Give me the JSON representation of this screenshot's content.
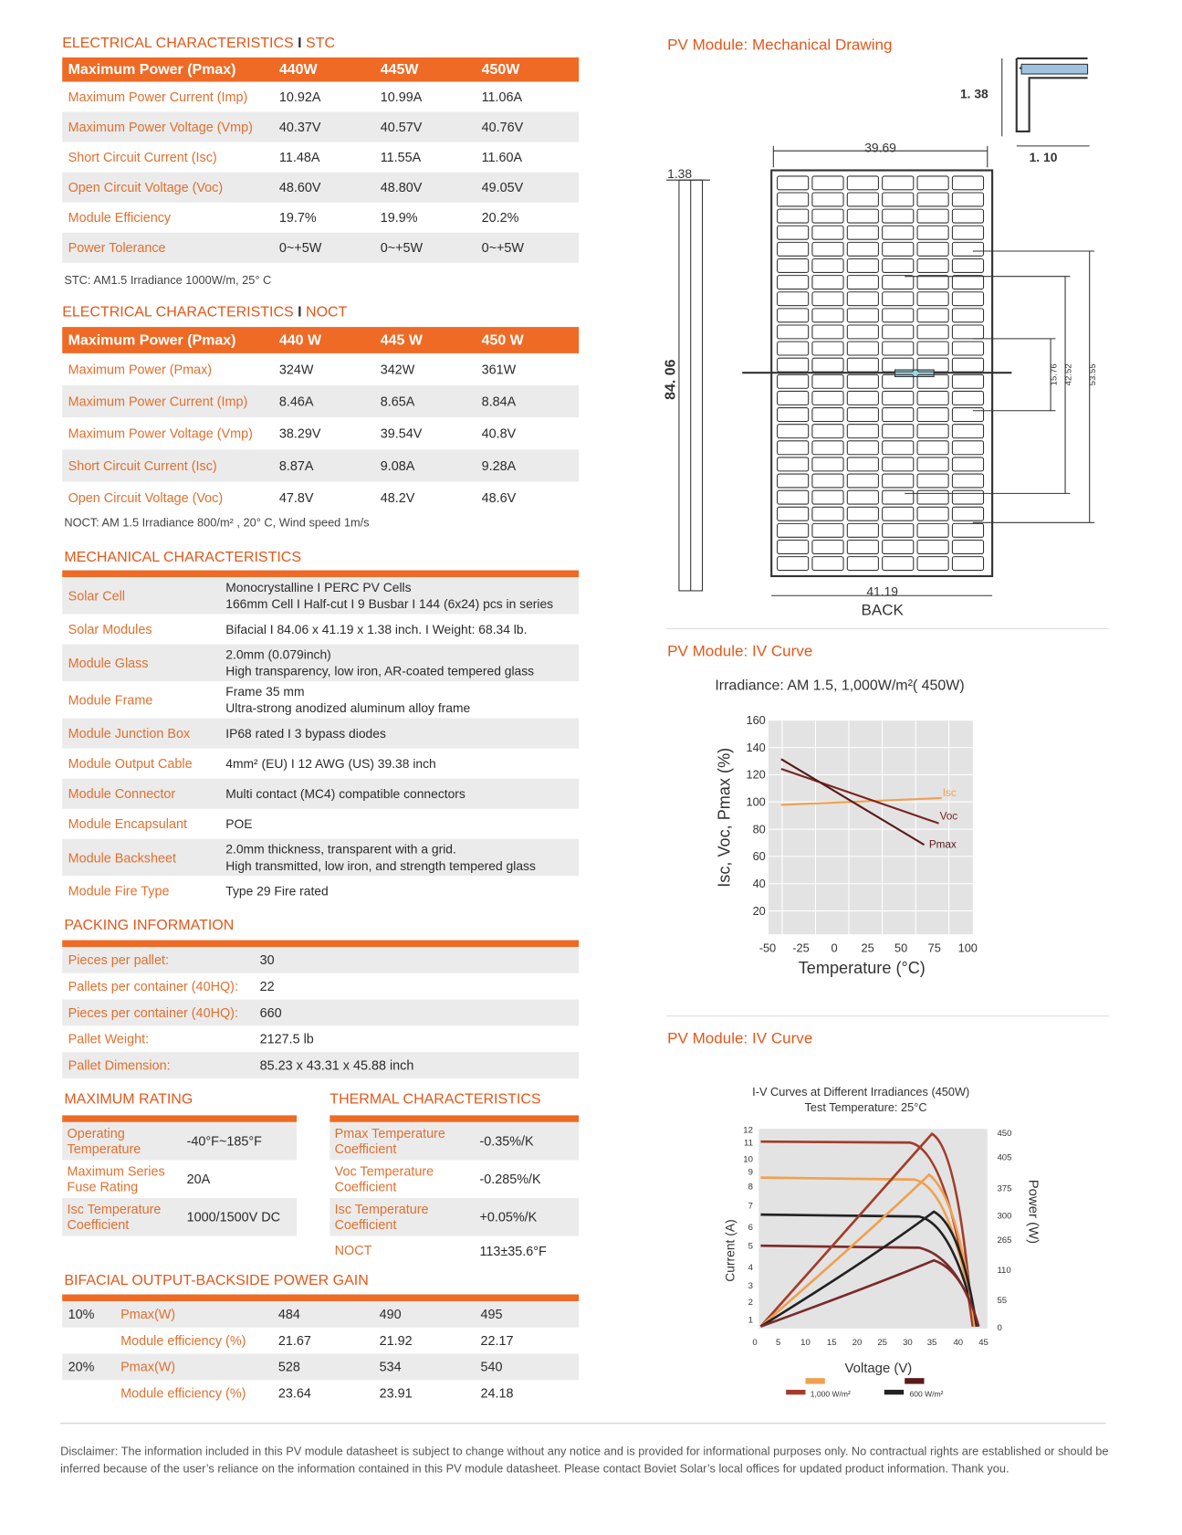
{
  "stc": {
    "title_a": "ELECTRICAL CHARACTERISTICS",
    "sep": "I",
    "title_b": "STC",
    "header": [
      "Maximum Power (Pmax)",
      "440W",
      "445W",
      "450W"
    ],
    "rows": [
      [
        "Maximum Power Current (Imp)",
        "10.92A",
        "10.99A",
        "11.06A"
      ],
      [
        "Maximum Power Voltage (Vmp)",
        "40.37V",
        "40.57V",
        "40.76V"
      ],
      [
        "Short Circuit Current (Isc)",
        "11.48A",
        "11.55A",
        "11.60A"
      ],
      [
        "Open Circuit Voltage (Voc)",
        "48.60V",
        "48.80V",
        "49.05V"
      ],
      [
        "Module Efficiency",
        "19.7%",
        "19.9%",
        "20.2%"
      ],
      [
        "Power Tolerance",
        "0~+5W",
        "0~+5W",
        "0~+5W"
      ]
    ],
    "note": "STC: AM1.5 Irradiance 1000W/m, 25° C"
  },
  "noct": {
    "title_a": "ELECTRICAL CHARACTERISTICS",
    "sep": "I",
    "title_b": "NOCT",
    "header": [
      "Maximum Power (Pmax)",
      "440 W",
      "445 W",
      "450 W"
    ],
    "rows": [
      [
        "Maximum Power (Pmax)",
        "324W",
        "342W",
        "361W"
      ],
      [
        "Maximum Power Current (Imp)",
        "8.46A",
        "8.65A",
        "8.84A"
      ],
      [
        "Maximum Power Voltage (Vmp)",
        "38.29V",
        "39.54V",
        "40.8V"
      ],
      [
        "Short Circuit Current (Isc)",
        "8.87A",
        "9.08A",
        "9.28A"
      ],
      [
        "Open Circuit Voltage (Voc)",
        "47.8V",
        "48.2V",
        "48.6V"
      ]
    ],
    "note": "NOCT: AM 1.5 Irradiance 800/m² , 20° C, Wind speed 1m/s"
  },
  "mechanical": {
    "title": "MECHANICAL CHARACTERISTICS",
    "rows": [
      {
        "label": "Solar Cell",
        "lines": [
          "Monocrystalline I PERC PV Cells",
          "166mm Cell I Half-cut I 9 Busbar I 144 (6x24) pcs in series"
        ]
      },
      {
        "label": "Solar Modules",
        "lines": [
          "Bifacial I 84.06 x 41.19 x 1.38 inch.  I Weight: 68.34 lb."
        ]
      },
      {
        "label": "Module Glass",
        "lines": [
          " 2.0mm (0.079inch)",
          "High transparency, low iron, AR-coated tempered glass"
        ]
      },
      {
        "label": "Module Frame",
        "lines": [
          "Frame 35 mm",
          "Ultra-strong anodized aluminum alloy frame"
        ]
      },
      {
        "label": "Module Junction Box",
        "lines": [
          "IP68 rated I 3 bypass diodes"
        ]
      },
      {
        "label": "Module Output Cable",
        "lines": [
          "4mm² (EU) I 12 AWG (US) 39.38 inch"
        ]
      },
      {
        "label": "Module Connector",
        "lines": [
          "Multi contact (MC4) compatible connectors"
        ]
      },
      {
        "label": "Module Encapsulant",
        "lines": [
          "POE"
        ]
      },
      {
        "label": "Module Backsheet",
        "lines": [
          "2.0mm thickness, transparent with a grid.",
          "High transmitted, low iron, and strength tempered glass"
        ]
      },
      {
        "label": "Module Fire Type",
        "lines": [
          "Type 29 Fire rated"
        ]
      }
    ]
  },
  "packing": {
    "title": "PACKING INFORMATION",
    "rows": [
      [
        "Pieces per pallet:",
        "30"
      ],
      [
        "Pallets per container (40HQ):",
        "22"
      ],
      [
        "Pieces per container (40HQ):",
        "660"
      ],
      [
        "Pallet Weight:",
        "2127.5 lb"
      ],
      [
        "Pallet Dimension:",
        "85.23 x 43.31 x 45.88 inch"
      ]
    ]
  },
  "max_rating": {
    "title": "MAXIMUM RATING",
    "rows": [
      [
        [
          "Operating",
          "Temperature"
        ],
        "-40°F~185°F"
      ],
      [
        [
          "Maximum Series",
          "Fuse Rating"
        ],
        "20A"
      ],
      [
        [
          "Isc Temperature",
          "Coefficient"
        ],
        "1000/1500V DC"
      ]
    ]
  },
  "thermal": {
    "title": "THERMAL CHARACTERISTICS",
    "rows": [
      [
        [
          "Pmax Temperature",
          "Coefficient"
        ],
        "-0.35%/K"
      ],
      [
        [
          "Voc Temperature",
          "Coefficient"
        ],
        "-0.285%/K"
      ],
      [
        [
          "Isc Temperature",
          "Coefficient"
        ],
        "+0.05%/K"
      ],
      [
        [
          "NOCT"
        ],
        "113±35.6°F"
      ]
    ]
  },
  "bifacial": {
    "title": "BIFACIAL OUTPUT-BACKSIDE POWER GAIN",
    "groups": [
      {
        "gain": "10%",
        "rows": [
          [
            "Pmax(W)",
            "484",
            "490",
            "495"
          ],
          [
            "Module efficiency (%)",
            "21.67",
            "21.92",
            "22.17"
          ]
        ]
      },
      {
        "gain": "20%",
        "rows": [
          [
            "Pmax(W)",
            "528",
            "534",
            "540"
          ],
          [
            "Module efficiency (%)",
            "23.64",
            "23.91",
            "24.18"
          ]
        ]
      }
    ]
  },
  "drawing": {
    "title": "PV Module: Mechanical Drawing",
    "frame_w": "1. 38",
    "frame_d": "1. 10",
    "width": "39.69",
    "thick": "1.38",
    "length": "84. 06",
    "outer": "41.19",
    "view": "BACK",
    "d1": "15.76",
    "d2": "42.52",
    "d3": "53.55"
  },
  "temp_chart": {
    "section_title": "PV Module: IV Curve",
    "title": "Irradiance: AM 1.5, 1,000W/m²( 450W)",
    "y_label": "Isc, Voc, Pmax (%)",
    "x_label": "Temperature (°C)",
    "yticks": [
      160,
      140,
      120,
      100,
      80,
      60,
      40,
      20
    ],
    "xticks": [
      -50,
      -25,
      0,
      25,
      50,
      75,
      100
    ],
    "series": [
      "Isc",
      "Voc",
      "Pmax"
    ]
  },
  "iv_chart": {
    "section_title": "PV Module: IV Curve",
    "title": "I-V Curves at Different Irradiances (450W)",
    "subtitle": "Test Temperature: 25°C",
    "y_label": "Current (A)",
    "y2_label": "Power (W)",
    "x_label": "Voltage (V)",
    "yticks": [
      12,
      11,
      10,
      9,
      8,
      7,
      6,
      5,
      4,
      3,
      2,
      1
    ],
    "xticks": [
      0,
      5,
      10,
      15,
      20,
      25,
      30,
      35,
      40,
      45
    ],
    "y2ticks": [
      450,
      405,
      375,
      300,
      265,
      110,
      55,
      0
    ],
    "legend": [
      "1,000 W/m²",
      "600 W/m²"
    ]
  },
  "disclaimer": "Disclaimer: The information included in this PV module datasheet is subject to change without any notice and is provided for informational purposes only. No contractual rights are established or should be inferred because of the user’s reliance on the information contained in this PV module datasheet. Please contact Boviet Solar’s local offices for updated product information. Thank you."
}
